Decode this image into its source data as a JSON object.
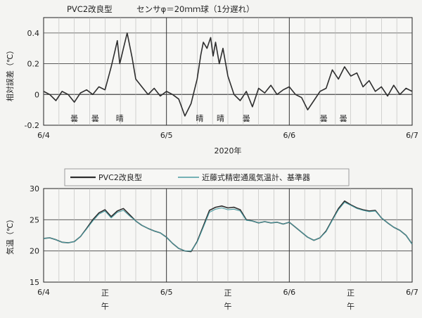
{
  "chart_data": [
    {
      "type": "line",
      "title": "PVC2改良型　　　センサφ＝20ｍｍ球（1分遅れ）",
      "ylabel": "相対誤差（℃）",
      "xlabel": "2020年",
      "x_tick_labels": [
        "6/4",
        "6/5",
        "6/6",
        "6/7"
      ],
      "ylim": [
        -0.2,
        0.5
      ],
      "y_ticks": [
        -0.2,
        0,
        0.2,
        0.4
      ],
      "y_tick_labels": [
        "-0.2",
        "0",
        "0.2",
        "0.4"
      ],
      "grid": true,
      "weather_labels": [
        {
          "day": 0.25,
          "text": "曇"
        },
        {
          "day": 0.42,
          "text": "曇"
        },
        {
          "day": 0.62,
          "text": "晴"
        },
        {
          "day": 1.27,
          "text": "晴"
        },
        {
          "day": 1.44,
          "text": "晴"
        },
        {
          "day": 1.65,
          "text": "曇"
        },
        {
          "day": 2.28,
          "text": "曇"
        },
        {
          "day": 2.44,
          "text": "曇"
        }
      ],
      "series": [
        {
          "name": "PVC2改良型",
          "color": "#2e2e2e",
          "x": [
            0.0,
            0.05,
            0.1,
            0.15,
            0.2,
            0.25,
            0.3,
            0.35,
            0.4,
            0.45,
            0.5,
            0.53,
            0.55,
            0.58,
            0.6,
            0.62,
            0.65,
            0.68,
            0.72,
            0.75,
            0.8,
            0.85,
            0.9,
            0.95,
            1.0,
            1.05,
            1.1,
            1.15,
            1.2,
            1.25,
            1.28,
            1.3,
            1.33,
            1.36,
            1.38,
            1.4,
            1.43,
            1.46,
            1.5,
            1.55,
            1.6,
            1.65,
            1.7,
            1.75,
            1.8,
            1.85,
            1.9,
            1.95,
            2.0,
            2.05,
            2.1,
            2.15,
            2.2,
            2.25,
            2.3,
            2.35,
            2.4,
            2.45,
            2.5,
            2.55,
            2.6,
            2.65,
            2.7,
            2.75,
            2.8,
            2.85,
            2.9,
            2.95,
            3.0
          ],
          "y": [
            0.02,
            0.0,
            -0.04,
            0.02,
            0.0,
            -0.05,
            0.01,
            0.03,
            0.0,
            0.05,
            0.03,
            0.12,
            0.18,
            0.28,
            0.35,
            0.2,
            0.3,
            0.4,
            0.24,
            0.1,
            0.05,
            0.0,
            0.04,
            -0.01,
            0.02,
            0.0,
            -0.03,
            -0.14,
            -0.06,
            0.1,
            0.26,
            0.34,
            0.3,
            0.37,
            0.25,
            0.34,
            0.2,
            0.3,
            0.12,
            0.0,
            -0.04,
            0.02,
            -0.08,
            0.04,
            0.01,
            0.06,
            0.0,
            0.03,
            0.05,
            0.0,
            -0.02,
            -0.1,
            -0.04,
            0.02,
            0.04,
            0.16,
            0.1,
            0.18,
            0.12,
            0.14,
            0.05,
            0.09,
            0.02,
            0.05,
            -0.01,
            0.06,
            0.0,
            0.04,
            0.02
          ]
        }
      ]
    },
    {
      "type": "line",
      "ylabel": "気温（℃）",
      "x_tick_labels": [
        "6/4",
        "6/5",
        "6/6",
        "6/7"
      ],
      "ylim": [
        15,
        30
      ],
      "y_ticks": [
        15,
        20,
        25,
        30
      ],
      "y_tick_labels": [
        "15",
        "20",
        "25",
        "30"
      ],
      "grid": true,
      "legend": {
        "placement": "top",
        "entries": [
          "PVC2改良型",
          "近藤式精密通風気温計、基準器"
        ]
      },
      "noon_labels": [
        {
          "day": 0.5,
          "text": "正\n午"
        },
        {
          "day": 1.5,
          "text": "正\n午"
        },
        {
          "day": 2.5,
          "text": "正\n午"
        }
      ],
      "series": [
        {
          "name": "PVC2改良型",
          "color": "#2e2e2e",
          "x": [
            0.0,
            0.05,
            0.1,
            0.15,
            0.2,
            0.25,
            0.3,
            0.35,
            0.4,
            0.45,
            0.5,
            0.55,
            0.6,
            0.65,
            0.7,
            0.75,
            0.8,
            0.85,
            0.9,
            0.95,
            1.0,
            1.05,
            1.1,
            1.15,
            1.2,
            1.25,
            1.3,
            1.35,
            1.4,
            1.45,
            1.5,
            1.55,
            1.6,
            1.65,
            1.7,
            1.75,
            1.8,
            1.85,
            1.9,
            1.95,
            2.0,
            2.05,
            2.1,
            2.15,
            2.2,
            2.25,
            2.3,
            2.35,
            2.4,
            2.45,
            2.5,
            2.55,
            2.6,
            2.65,
            2.7,
            2.75,
            2.8,
            2.85,
            2.9,
            2.95,
            3.0
          ],
          "y": [
            22.0,
            22.1,
            21.8,
            21.4,
            21.3,
            21.5,
            22.3,
            23.6,
            25.0,
            26.1,
            26.6,
            25.5,
            26.4,
            26.8,
            25.8,
            24.8,
            24.1,
            23.6,
            23.2,
            22.9,
            22.2,
            21.2,
            20.4,
            20.0,
            19.9,
            21.5,
            24.0,
            26.5,
            27.0,
            27.2,
            26.9,
            27.0,
            26.6,
            25.0,
            24.8,
            24.5,
            24.7,
            24.5,
            24.6,
            24.3,
            24.6,
            23.8,
            23.0,
            22.2,
            21.7,
            22.1,
            23.2,
            25.0,
            26.8,
            28.0,
            27.4,
            26.9,
            26.6,
            26.4,
            26.5,
            25.3,
            24.5,
            23.8,
            23.3,
            22.5,
            21.1
          ]
        },
        {
          "name": "近藤式精密通風気温計、基準器",
          "color": "#4a9aa0",
          "x": [
            0.0,
            0.05,
            0.1,
            0.15,
            0.2,
            0.25,
            0.3,
            0.35,
            0.4,
            0.45,
            0.5,
            0.55,
            0.6,
            0.65,
            0.7,
            0.75,
            0.8,
            0.85,
            0.9,
            0.95,
            1.0,
            1.05,
            1.1,
            1.15,
            1.2,
            1.25,
            1.3,
            1.35,
            1.4,
            1.45,
            1.5,
            1.55,
            1.6,
            1.65,
            1.7,
            1.75,
            1.8,
            1.85,
            1.9,
            1.95,
            2.0,
            2.05,
            2.1,
            2.15,
            2.2,
            2.25,
            2.3,
            2.35,
            2.4,
            2.45,
            2.5,
            2.55,
            2.6,
            2.65,
            2.7,
            2.75,
            2.8,
            2.85,
            2.9,
            2.95,
            3.0
          ],
          "y": [
            22.0,
            22.1,
            21.8,
            21.4,
            21.3,
            21.5,
            22.3,
            23.5,
            24.8,
            25.9,
            26.4,
            25.3,
            26.2,
            26.5,
            25.6,
            24.8,
            24.1,
            23.6,
            23.2,
            22.9,
            22.2,
            21.2,
            20.4,
            20.0,
            20.0,
            21.4,
            23.8,
            26.2,
            26.7,
            26.9,
            26.6,
            26.7,
            26.4,
            24.9,
            24.8,
            24.5,
            24.7,
            24.5,
            24.6,
            24.3,
            24.6,
            23.8,
            23.0,
            22.2,
            21.7,
            22.1,
            23.1,
            24.9,
            26.6,
            27.8,
            27.3,
            26.8,
            26.5,
            26.3,
            26.4,
            25.3,
            24.5,
            23.8,
            23.3,
            22.5,
            21.1
          ]
        }
      ]
    }
  ]
}
